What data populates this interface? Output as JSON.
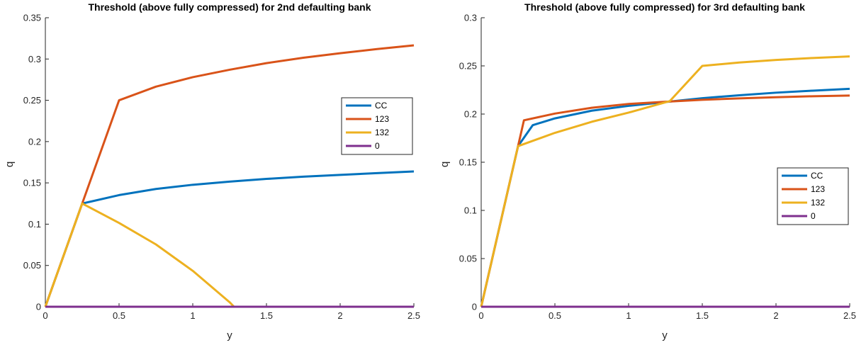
{
  "chart_data": [
    {
      "type": "line",
      "title": "Threshold (above fully compressed) for 2nd defaulting bank",
      "xlabel": "y",
      "ylabel": "q",
      "xlim": [
        0,
        2.5
      ],
      "ylim": [
        0,
        0.35
      ],
      "xticks": [
        0,
        0.5,
        1,
        1.5,
        2,
        2.5
      ],
      "xtick_labels": [
        "0",
        "0.5",
        "1",
        "1.5",
        "2",
        "2.5"
      ],
      "yticks": [
        0,
        0.05,
        0.1,
        0.15,
        0.2,
        0.25,
        0.3,
        0.35
      ],
      "ytick_labels": [
        "0",
        "0.05",
        "0.1",
        "0.15",
        "0.2",
        "0.25",
        "0.3",
        "0.35"
      ],
      "grid": false,
      "legend_position": "right",
      "series": [
        {
          "name": "CC",
          "color": "#0072BD",
          "points": [
            [
              0,
              0
            ],
            [
              0.25,
              0.125
            ],
            [
              0.5,
              0.1352
            ],
            [
              0.75,
              0.1426
            ],
            [
              1,
              0.1477
            ],
            [
              1.25,
              0.1515
            ],
            [
              1.5,
              0.1548
            ],
            [
              1.75,
              0.1575
            ],
            [
              2,
              0.1597
            ],
            [
              2.25,
              0.1618
            ],
            [
              2.5,
              0.1638
            ]
          ]
        },
        {
          "name": "123",
          "color": "#D95319",
          "points": [
            [
              0,
              0
            ],
            [
              0.25,
              0.125
            ],
            [
              0.5,
              0.25
            ],
            [
              0.75,
              0.2665
            ],
            [
              1,
              0.278
            ],
            [
              1.25,
              0.287
            ],
            [
              1.5,
              0.295
            ],
            [
              1.75,
              0.3015
            ],
            [
              2,
              0.307
            ],
            [
              2.25,
              0.312
            ],
            [
              2.5,
              0.3165
            ]
          ]
        },
        {
          "name": "132",
          "color": "#EDB120",
          "points": [
            [
              0,
              0
            ],
            [
              0.25,
              0.125
            ],
            [
              0.5,
              0.1015
            ],
            [
              0.75,
              0.0755
            ],
            [
              1,
              0.0435
            ],
            [
              1.25,
              0.0055
            ],
            [
              1.28,
              0
            ]
          ]
        },
        {
          "name": "0",
          "color": "#7E2F8E",
          "points": [
            [
              0,
              0
            ],
            [
              2.5,
              0
            ]
          ]
        }
      ]
    },
    {
      "type": "line",
      "title": "Threshold (above fully compressed) for 3rd defaulting bank",
      "xlabel": "y",
      "ylabel": "q",
      "xlim": [
        0,
        2.5
      ],
      "ylim": [
        0,
        0.3
      ],
      "xticks": [
        0,
        0.5,
        1,
        1.5,
        2,
        2.5
      ],
      "xtick_labels": [
        "0",
        "0.5",
        "1",
        "1.5",
        "2",
        "2.5"
      ],
      "yticks": [
        0,
        0.05,
        0.1,
        0.15,
        0.2,
        0.25,
        0.3
      ],
      "ytick_labels": [
        "0",
        "0.05",
        "0.1",
        "0.15",
        "0.2",
        "0.25",
        "0.3"
      ],
      "grid": false,
      "legend_position": "right",
      "series": [
        {
          "name": "CC",
          "color": "#0072BD",
          "points": [
            [
              0,
              0
            ],
            [
              0.25,
              0.1667
            ],
            [
              0.35,
              0.1885
            ],
            [
              0.5,
              0.1955
            ],
            [
              0.75,
              0.2035
            ],
            [
              1,
              0.2085
            ],
            [
              1.25,
              0.2125
            ],
            [
              1.5,
              0.2165
            ],
            [
              1.75,
              0.2195
            ],
            [
              2,
              0.2222
            ],
            [
              2.25,
              0.2243
            ],
            [
              2.5,
              0.2262
            ]
          ]
        },
        {
          "name": "123",
          "color": "#D95319",
          "points": [
            [
              0,
              0
            ],
            [
              0.25,
              0.1667
            ],
            [
              0.29,
              0.1935
            ],
            [
              0.5,
              0.2005
            ],
            [
              0.75,
              0.2065
            ],
            [
              1,
              0.2105
            ],
            [
              1.25,
              0.2128
            ],
            [
              1.5,
              0.2148
            ],
            [
              1.75,
              0.2163
            ],
            [
              2,
              0.2175
            ],
            [
              2.25,
              0.2185
            ],
            [
              2.5,
              0.2192
            ]
          ]
        },
        {
          "name": "132",
          "color": "#EDB120",
          "points": [
            [
              0,
              0
            ],
            [
              0.25,
              0.1667
            ],
            [
              0.5,
              0.1805
            ],
            [
              0.75,
              0.192
            ],
            [
              1,
              0.2015
            ],
            [
              1.28,
              0.2135
            ],
            [
              1.5,
              0.25
            ],
            [
              1.75,
              0.2535
            ],
            [
              2,
              0.2562
            ],
            [
              2.25,
              0.2582
            ],
            [
              2.5,
              0.2598
            ]
          ]
        },
        {
          "name": "0",
          "color": "#7E2F8E",
          "points": [
            [
              0,
              0
            ],
            [
              2.5,
              0
            ]
          ]
        }
      ]
    }
  ]
}
